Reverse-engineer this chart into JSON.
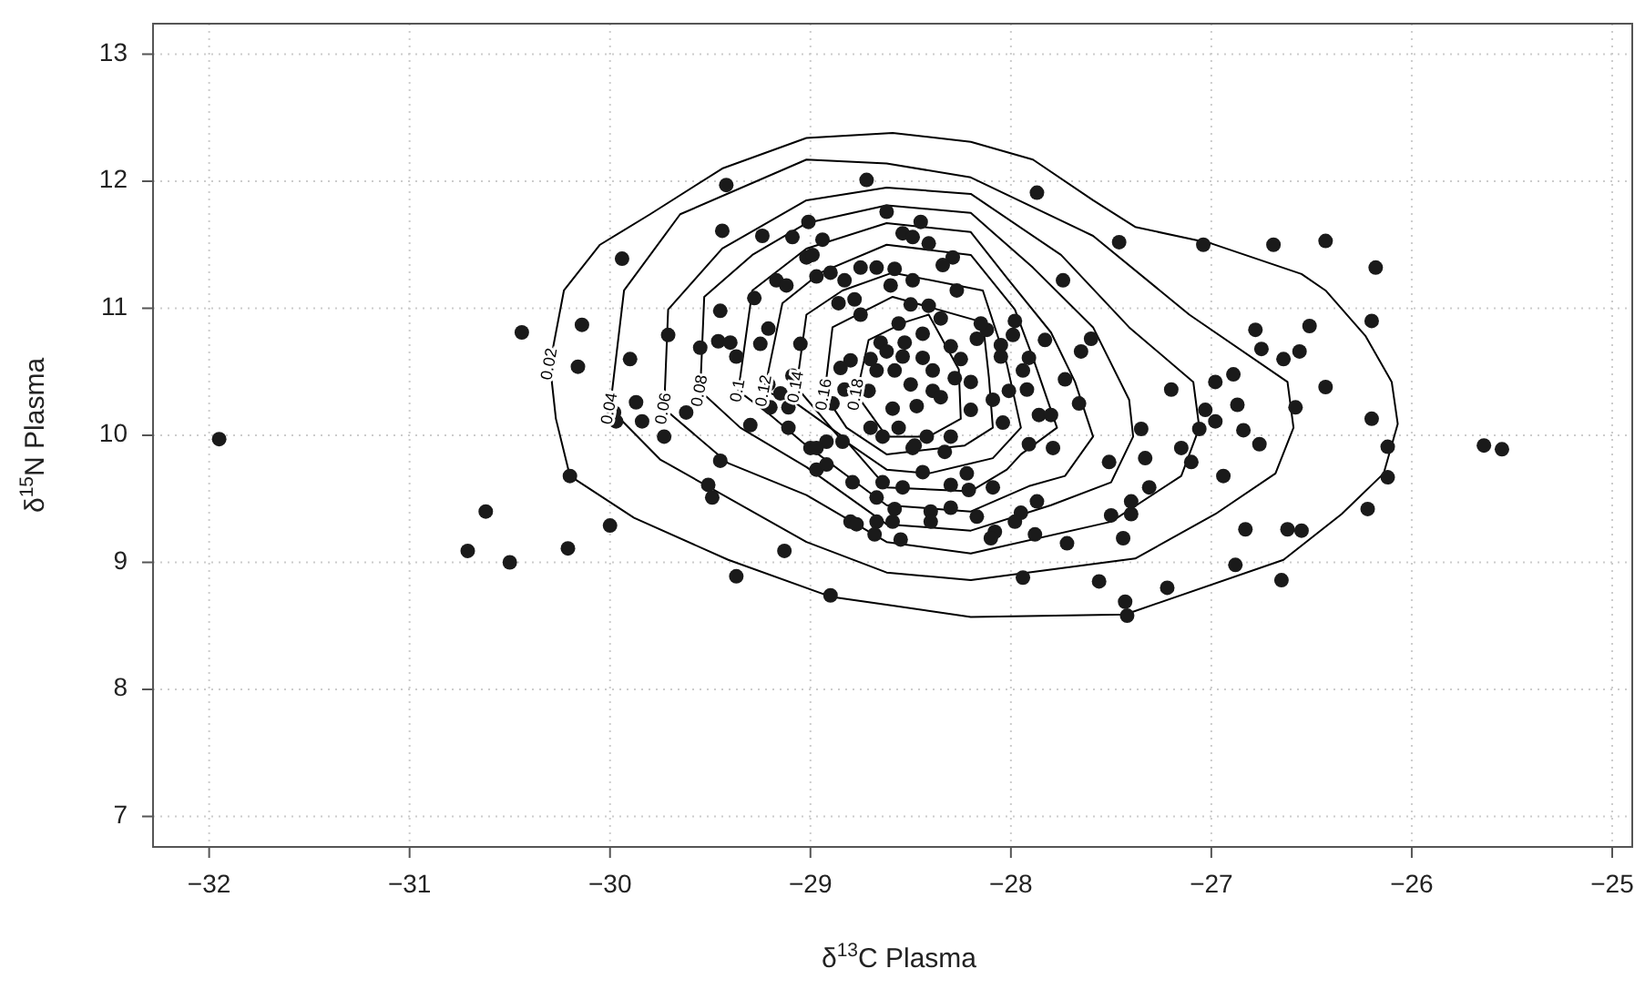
{
  "chart_data": {
    "type": "scatter",
    "xlabel": "δ$^{13}$C Plasma",
    "ylabel": "δ$^{15}$N Plasma",
    "xlim": [
      -32.28,
      -24.9
    ],
    "ylim": [
      6.76,
      13.24
    ],
    "xticks": [
      -32,
      -31,
      -30,
      -29,
      -28,
      -27,
      -26,
      -25
    ],
    "yticks": [
      7,
      8,
      9,
      10,
      11,
      12,
      13
    ],
    "grid": true,
    "marker": "circle",
    "annotations": [
      "0.02",
      "0.04",
      "0.06",
      "0.08",
      "0.1",
      "0.12",
      "0.14",
      "0.16",
      "0.18"
    ],
    "series": [
      {
        "type": "scatter",
        "color": "#1a1a1a",
        "x": [
          -31.95,
          -30.44,
          -30.14,
          -30.16,
          -29.94,
          -29.9,
          -29.71,
          -29.87,
          -29.98,
          -29.97,
          -29.84,
          -29.73,
          -29.62,
          -30.2,
          -30.62,
          -30.71,
          -30.5,
          -30.21,
          -30.0,
          -29.42,
          -28.72,
          -29.44,
          -29.24,
          -29.09,
          -29.01,
          -28.94,
          -28.62,
          -28.54,
          -28.45,
          -28.49,
          -28.41,
          -29.02,
          -28.99,
          -29.17,
          -29.12,
          -29.28,
          -29.45,
          -29.55,
          -29.46,
          -29.4,
          -29.37,
          -29.21,
          -29.25,
          -29.05,
          -29.09,
          -28.97,
          -28.9,
          -28.83,
          -28.75,
          -28.67,
          -28.58,
          -28.49,
          -28.6,
          -28.78,
          -28.86,
          -28.5,
          -28.41,
          -28.35,
          -28.75,
          -28.56,
          -28.65,
          -28.53,
          -28.44,
          -28.62,
          -28.54,
          -28.44,
          -28.8,
          -28.85,
          -28.67,
          -28.58,
          -28.39,
          -28.83,
          -28.71,
          -28.59,
          -28.47,
          -28.39,
          -28.89,
          -28.56,
          -28.64,
          -28.42,
          -29.45,
          -29.3,
          -29.21,
          -29.15,
          -29.11,
          -29.2,
          -28.92,
          -28.84,
          -29.0,
          -29.51,
          -29.49,
          -29.13,
          -29.37,
          -28.9,
          -29.11,
          -28.97,
          -28.97,
          -28.92,
          -28.79,
          -28.67,
          -28.64,
          -28.54,
          -28.44,
          -28.58,
          -28.8,
          -28.77,
          -28.67,
          -28.68,
          -28.59,
          -28.55,
          -28.4,
          -28.4,
          -28.7,
          -28.33,
          -28.49,
          -27.87,
          -27.46,
          -27.04,
          -26.69,
          -27.74,
          -26.78,
          -26.75,
          -26.89,
          -26.98,
          -27.2,
          -26.87,
          -27.03,
          -26.98,
          -26.84,
          -27.06,
          -27.35,
          -27.6,
          -27.65,
          -27.83,
          -27.73,
          -27.66,
          -27.86,
          -27.8,
          -27.92,
          -28.01,
          -27.94,
          -27.98,
          -27.99,
          -28.05,
          -28.05,
          -27.91,
          -28.12,
          -28.15,
          -28.2,
          -28.09,
          -28.04,
          -28.2,
          -28.29,
          -28.34,
          -28.27,
          -28.17,
          -27.94,
          -27.56,
          -27.43,
          -27.42,
          -27.22,
          -27.72,
          -27.88,
          -27.44,
          -27.5,
          -27.4,
          -27.4,
          -27.31,
          -27.33,
          -27.51,
          -27.1,
          -27.15,
          -26.94,
          -26.83,
          -26.88,
          -27.79,
          -27.91,
          -27.87,
          -27.95,
          -27.98,
          -28.08,
          -28.1,
          -28.17,
          -28.3,
          -28.21,
          -28.3,
          -28.09,
          -28.22,
          -28.3,
          -28.48,
          -26.76,
          -26.43,
          -26.18,
          -26.51,
          -26.2,
          -26.64,
          -26.56,
          -26.43,
          -26.58,
          -26.2,
          -26.12,
          -26.12,
          -26.22,
          -25.64,
          -25.55,
          -26.62,
          -26.55,
          -26.65,
          -28.3,
          -28.25,
          -28.28,
          -28.35,
          -28.5,
          -28.7
        ],
        "values": [
          9.97,
          10.81,
          10.87,
          10.54,
          11.39,
          10.6,
          10.79,
          10.26,
          10.18,
          10.11,
          10.11,
          9.99,
          10.18,
          9.68,
          9.4,
          9.09,
          9.0,
          9.11,
          9.29,
          11.97,
          12.01,
          11.61,
          11.57,
          11.56,
          11.68,
          11.54,
          11.76,
          11.59,
          11.68,
          11.56,
          11.51,
          11.4,
          11.42,
          11.22,
          11.18,
          11.08,
          10.98,
          10.69,
          10.74,
          10.73,
          10.62,
          10.84,
          10.72,
          10.72,
          10.47,
          11.25,
          11.28,
          11.22,
          11.32,
          11.32,
          11.31,
          11.22,
          11.18,
          11.07,
          11.04,
          11.03,
          11.02,
          10.92,
          10.95,
          10.88,
          10.73,
          10.73,
          10.8,
          10.66,
          10.62,
          10.61,
          10.59,
          10.53,
          10.51,
          10.51,
          10.51,
          10.36,
          10.35,
          10.21,
          10.23,
          10.35,
          10.25,
          10.06,
          9.99,
          9.99,
          9.8,
          10.08,
          10.4,
          10.33,
          10.22,
          10.22,
          9.95,
          9.95,
          9.9,
          9.61,
          9.51,
          9.09,
          8.89,
          8.74,
          10.06,
          9.9,
          9.73,
          9.77,
          9.63,
          9.51,
          9.63,
          9.59,
          9.71,
          9.42,
          9.32,
          9.3,
          9.32,
          9.22,
          9.32,
          9.18,
          9.4,
          9.32,
          10.06,
          9.87,
          9.9,
          11.91,
          11.52,
          11.5,
          11.5,
          11.22,
          10.83,
          10.68,
          10.48,
          10.42,
          10.36,
          10.24,
          10.2,
          10.11,
          10.04,
          10.05,
          10.05,
          10.76,
          10.66,
          10.75,
          10.44,
          10.25,
          10.16,
          10.16,
          10.36,
          10.35,
          10.51,
          10.9,
          10.79,
          10.71,
          10.62,
          10.61,
          10.83,
          10.88,
          10.42,
          10.28,
          10.1,
          10.2,
          11.4,
          11.34,
          11.14,
          10.76,
          8.88,
          8.85,
          8.69,
          8.58,
          8.8,
          9.15,
          9.22,
          9.19,
          9.37,
          9.38,
          9.48,
          9.59,
          9.82,
          9.79,
          9.79,
          9.9,
          9.68,
          9.26,
          8.98,
          9.9,
          9.93,
          9.48,
          9.39,
          9.32,
          9.24,
          9.19,
          9.36,
          9.43,
          9.57,
          9.61,
          9.59,
          9.7,
          9.99,
          9.92,
          9.93,
          11.53,
          11.32,
          10.86,
          10.9,
          10.6,
          10.66,
          10.38,
          10.22,
          10.13,
          9.91,
          9.67,
          9.42,
          9.92,
          9.89,
          9.26,
          9.25,
          8.86,
          10.7,
          10.6,
          10.45,
          10.3,
          10.4,
          10.6
        ]
      }
    ]
  }
}
